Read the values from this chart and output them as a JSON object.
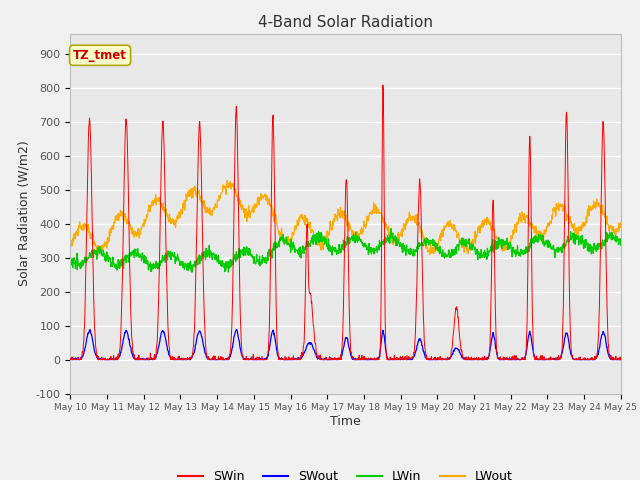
{
  "title": "4-Band Solar Radiation",
  "xlabel": "Time",
  "ylabel": "Solar Radiation (W/m2)",
  "ylim": [
    -100,
    960
  ],
  "yticks": [
    -100,
    0,
    100,
    200,
    300,
    400,
    500,
    600,
    700,
    800,
    900
  ],
  "fig_bg_color": "#f0f0f0",
  "plot_bg_color": "#e8e8e8",
  "annotation_text": "TZ_tmet",
  "annotation_bg": "#ffffcc",
  "annotation_border": "#aaa800",
  "annotation_text_color": "#cc0000",
  "line_colors": {
    "SWin": "#ff0000",
    "SWout": "#0000ff",
    "LWin": "#00cc00",
    "LWout": "#ffaa00"
  },
  "legend_labels": [
    "SWin",
    "SWout",
    "LWin",
    "LWout"
  ],
  "x_tick_labels": [
    "May 10",
    "May 11",
    "May 12",
    "May 13",
    "May 14",
    "May 15",
    "May 16",
    "May 17",
    "May 18",
    "May 19",
    "May 20",
    "May 21",
    "May 22",
    "May 23",
    "May 24",
    "May 25"
  ],
  "n_points": 1440,
  "days": 15
}
